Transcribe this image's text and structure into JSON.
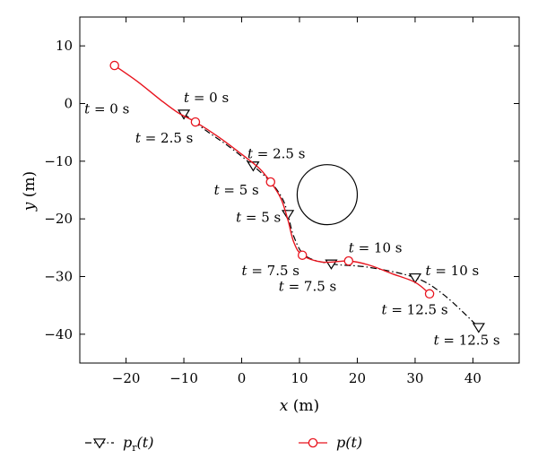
{
  "chart_data": {
    "type": "line",
    "xlabel": "x (m)",
    "ylabel": "y (m)",
    "xlim": [
      -28,
      48
    ],
    "ylim": [
      -45,
      15
    ],
    "xticks": [
      -20,
      -10,
      0,
      10,
      20,
      30,
      40
    ],
    "yticks": [
      10,
      0,
      -10,
      -20,
      -30,
      -40
    ],
    "grid": false,
    "legend_position": "bottom",
    "series": [
      {
        "name": "p_r(t)",
        "legend_main": "p",
        "legend_sub": "r",
        "legend_tail": "(t)",
        "color": "#000000",
        "line_style": "dash-dot",
        "marker": "triangle-down",
        "path": [
          [
            -10,
            -1.8
          ],
          [
            -6,
            -4.8
          ],
          [
            -2,
            -7.6
          ],
          [
            2,
            -10.8
          ],
          [
            5,
            -13.6
          ],
          [
            7,
            -16.4
          ],
          [
            8,
            -19.2
          ],
          [
            9,
            -23
          ],
          [
            11,
            -26.4
          ],
          [
            15.5,
            -27.8
          ],
          [
            22,
            -28.4
          ],
          [
            30,
            -30.2
          ],
          [
            35,
            -33.2
          ],
          [
            41,
            -38.8
          ]
        ],
        "markers": [
          [
            -10,
            -1.8
          ],
          [
            2,
            -10.8
          ],
          [
            8,
            -19.2
          ],
          [
            15.5,
            -27.8
          ],
          [
            30,
            -30.2
          ],
          [
            41,
            -38.8
          ]
        ]
      },
      {
        "name": "p(t)",
        "legend_main": "p",
        "legend_sub": "",
        "legend_tail": "(t)",
        "color": "#e8141e",
        "line_style": "solid",
        "marker": "circle-open",
        "path": [
          [
            -22,
            6.6
          ],
          [
            -18,
            3.8
          ],
          [
            -14,
            0.6
          ],
          [
            -11,
            -1.6
          ],
          [
            -8,
            -3.2
          ],
          [
            -4,
            -5.8
          ],
          [
            0,
            -8.8
          ],
          [
            3,
            -11.2
          ],
          [
            5,
            -13.6
          ],
          [
            6.8,
            -16.5
          ],
          [
            8,
            -20.2
          ],
          [
            9,
            -24
          ],
          [
            10.5,
            -26.3
          ],
          [
            14,
            -27.5
          ],
          [
            18.5,
            -27.3
          ],
          [
            22,
            -28
          ],
          [
            26,
            -29.5
          ],
          [
            30,
            -31
          ],
          [
            32.5,
            -33
          ]
        ],
        "markers": [
          [
            -22,
            6.6
          ],
          [
            -8,
            -3.2
          ],
          [
            5,
            -13.6
          ],
          [
            10.5,
            -26.3
          ],
          [
            18.5,
            -27.3
          ],
          [
            32.5,
            -33
          ]
        ]
      }
    ],
    "obstacle": {
      "cx": 14.8,
      "cy": -15.8,
      "r": 5.2
    },
    "annotations": [
      {
        "text": "t = 0 s",
        "x": -27.2,
        "y": -1.7
      },
      {
        "text": "t = 0 s",
        "x": -10,
        "y": 0.2
      },
      {
        "text": "t = 2.5 s",
        "x": -18.4,
        "y": -6.8
      },
      {
        "text": "t = 2.5 s",
        "x": 1,
        "y": -9.5
      },
      {
        "text": "t = 5 s",
        "x": -4.8,
        "y": -15.8
      },
      {
        "text": "t = 5 s",
        "x": -1,
        "y": -20.5
      },
      {
        "text": "t = 7.5 s",
        "x": 0,
        "y": -29.8
      },
      {
        "text": "t = 7.5 s",
        "x": 6.4,
        "y": -32.5
      },
      {
        "text": "t = 10 s",
        "x": 18.5,
        "y": -25.8
      },
      {
        "text": "t = 10 s",
        "x": 31.8,
        "y": -29.8
      },
      {
        "text": "t = 12.5 s",
        "x": 24.2,
        "y": -36.5
      },
      {
        "text": "t = 12.5 s",
        "x": 33.2,
        "y": -41.8
      }
    ]
  }
}
